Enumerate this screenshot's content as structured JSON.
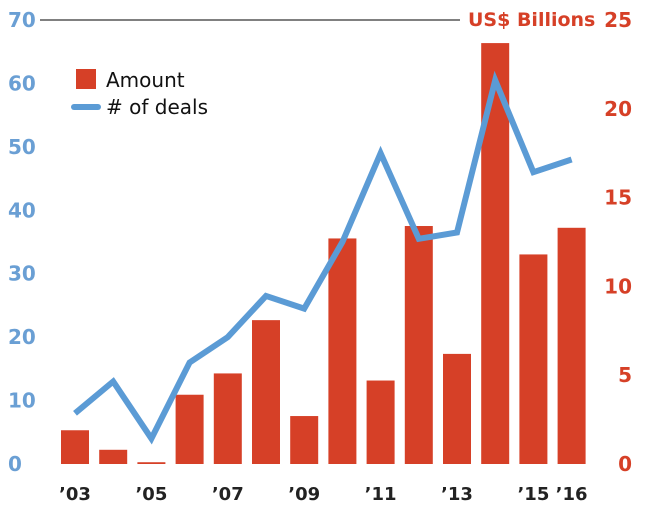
{
  "chart_data": {
    "type": "bar",
    "categories": [
      "2003",
      "2004",
      "2005",
      "2006",
      "2007",
      "2008",
      "2009",
      "2010",
      "2011",
      "2012",
      "2013",
      "2014",
      "2015",
      "2016"
    ],
    "x_tick_labels": [
      {
        "category": "2003",
        "label": "’03"
      },
      {
        "category": "2005",
        "label": "’05"
      },
      {
        "category": "2007",
        "label": "’07"
      },
      {
        "category": "2009",
        "label": "’09"
      },
      {
        "category": "2011",
        "label": "’11"
      },
      {
        "category": "2013",
        "label": "’13"
      },
      {
        "category": "2015",
        "label": "’15"
      },
      {
        "category": "2016",
        "label": "’16"
      }
    ],
    "series": [
      {
        "name": "Amount",
        "type": "bar",
        "axis": "right",
        "color": "#d64027",
        "values": [
          1.9,
          0.8,
          0.1,
          3.9,
          5.1,
          8.1,
          2.7,
          12.7,
          4.7,
          13.4,
          6.2,
          23.7,
          11.8,
          13.3
        ]
      },
      {
        "name": "# of deals",
        "type": "line",
        "axis": "left",
        "color": "#5b9bd5",
        "values": [
          8,
          13,
          4,
          16,
          20,
          26.5,
          24.5,
          35,
          49,
          35.5,
          36.5,
          60.5,
          46,
          48
        ]
      }
    ],
    "left_axis": {
      "ticks": [
        "0",
        "10",
        "20",
        "30",
        "40",
        "50",
        "60",
        "70"
      ],
      "min": 0,
      "max": 70,
      "color": "#6a9fd4"
    },
    "right_axis": {
      "ticks": [
        "0",
        "5",
        "10",
        "15",
        "20",
        "25"
      ],
      "min": 0,
      "max": 25,
      "label": "US$ Billions",
      "color": "#d64027"
    },
    "legend": {
      "position": "top-left",
      "entries": [
        "Amount",
        "# of deals"
      ]
    }
  }
}
